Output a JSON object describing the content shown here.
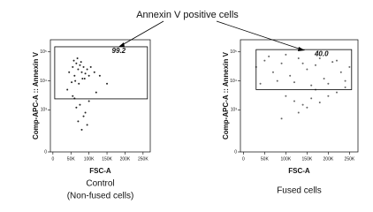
{
  "annotation": "Annexin V positive cells",
  "chart_data": [
    {
      "type": "scatter",
      "xlabel": "FSC-A",
      "ylabel": "Comp-APC-A :: Annexin V",
      "caption": [
        "Control",
        "(Non-fused cells)"
      ],
      "xlim": [
        -7000,
        270000
      ],
      "ylim": [
        0,
        262144
      ],
      "yscale": "biexponential",
      "color": "#222222",
      "xticks": [
        0,
        {
          "value": 50000,
          "label": "50K"
        },
        {
          "value": 100000,
          "label": "100K"
        },
        {
          "value": 150000,
          "label": "150K"
        },
        {
          "value": 200000,
          "label": "200K"
        },
        {
          "value": 250000,
          "label": "250K"
        }
      ],
      "yticks": [
        0,
        {
          "value": 1000,
          "label": "10³"
        },
        {
          "value": 10000,
          "label": "10⁴"
        },
        {
          "value": 100000,
          "label": "10⁵"
        }
      ],
      "gate": {
        "x": [
          5000,
          262144
        ],
        "y": [
          2400,
          150000
        ],
        "percent": 99.2
      },
      "x": [
        45000,
        55000,
        60000,
        65000,
        70000,
        75000,
        80000,
        85000,
        90000,
        95000,
        100000,
        58000,
        68000,
        78000,
        88000,
        62000,
        72000,
        82000,
        52000,
        105000,
        115000,
        130000,
        150000,
        40000,
        60000,
        75000,
        90000,
        70000,
        80000,
        65000,
        85000,
        100000,
        120000,
        55000,
        95000
      ],
      "y": [
        20000,
        30000,
        15000,
        40000,
        25000,
        35000,
        20000,
        30000,
        18000,
        25000,
        15000,
        50000,
        60000,
        45000,
        12000,
        10000,
        8000,
        12000,
        9000,
        30000,
        20000,
        15000,
        8000,
        5000,
        2500,
        1500,
        800,
        400,
        200,
        1200,
        600,
        2000,
        4000,
        3000,
        300
      ]
    },
    {
      "type": "scatter",
      "xlabel": "FSC-A",
      "ylabel": "Comp-APC-A :: Annexin V",
      "caption": [
        "Fused cells"
      ],
      "xlim": [
        -7000,
        270000
      ],
      "ylim": [
        0,
        262144
      ],
      "yscale": "biexponential",
      "color": "#666666",
      "xticks": [
        0,
        {
          "value": 50000,
          "label": "50K"
        },
        {
          "value": 100000,
          "label": "100K"
        },
        {
          "value": 150000,
          "label": "150K"
        },
        {
          "value": 200000,
          "label": "200K"
        },
        {
          "value": 250000,
          "label": "250K"
        }
      ],
      "yticks": [
        0,
        {
          "value": 1000,
          "label": "10³"
        },
        {
          "value": 10000,
          "label": "10⁴"
        },
        {
          "value": 100000,
          "label": "10⁵"
        }
      ],
      "gate": {
        "x": [
          30000,
          255000
        ],
        "y": [
          5000,
          120000
        ],
        "percent": {
          "value": 40,
          "label": "40.0"
        }
      },
      "x": [
        30000,
        50000,
        70000,
        90000,
        110000,
        130000,
        150000,
        170000,
        190000,
        210000,
        230000,
        250000,
        40000,
        80000,
        120000,
        160000,
        200000,
        240000,
        60000,
        100000,
        140000,
        180000,
        220000,
        100000,
        120000,
        140000,
        160000,
        180000,
        200000,
        220000,
        130000,
        150000,
        170000,
        240000,
        90000
      ],
      "y": [
        30000,
        50000,
        20000,
        40000,
        15000,
        60000,
        25000,
        35000,
        12000,
        45000,
        20000,
        30000,
        8000,
        10000,
        9000,
        7000,
        8000,
        10000,
        70000,
        80000,
        40000,
        60000,
        50000,
        3000,
        2000,
        1500,
        2500,
        1800,
        3000,
        4000,
        800,
        1200,
        5000,
        6000,
        500
      ]
    }
  ]
}
